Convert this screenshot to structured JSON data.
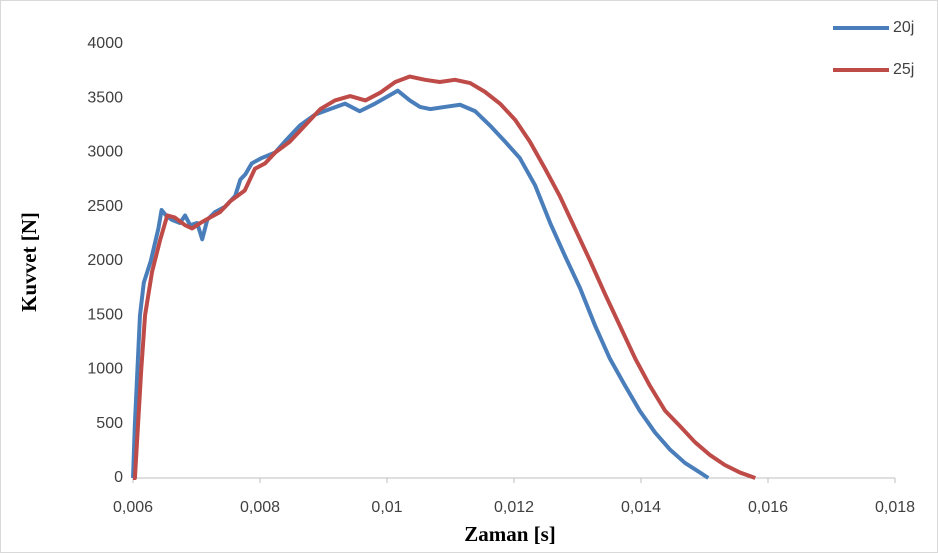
{
  "chart_data": {
    "type": "line",
    "x_label": "Zaman [s]",
    "y_label": "Kuvvet [N]",
    "xlim": [
      0.006,
      0.018
    ],
    "xticks": [
      {
        "value": 0.006,
        "label": "0,006"
      },
      {
        "value": 0.008,
        "label": "0,008"
      },
      {
        "value": 0.01,
        "label": "0,01"
      },
      {
        "value": 0.012,
        "label": "0,012"
      },
      {
        "value": 0.014,
        "label": "0,014"
      },
      {
        "value": 0.016,
        "label": "0,016"
      },
      {
        "value": 0.018,
        "label": "0,018"
      }
    ],
    "ylim": [
      0,
      4000
    ],
    "yticks": [
      0,
      500,
      1000,
      1500,
      2000,
      2500,
      3000,
      3500,
      4000
    ],
    "grid": false,
    "legend": "right",
    "series": [
      {
        "name": "20j",
        "color": "#4a7ebb",
        "x": [
          0.006,
          0.00603,
          0.00607,
          0.00611,
          0.00617,
          0.00628,
          0.0064,
          0.00645,
          0.00652,
          0.00661,
          0.00674,
          0.00682,
          0.0069,
          0.00701,
          0.00709,
          0.00717,
          0.00729,
          0.00745,
          0.00761,
          0.00769,
          0.00777,
          0.00787,
          0.00803,
          0.00824,
          0.00839,
          0.00863,
          0.00887,
          0.0091,
          0.00934,
          0.00957,
          0.00981,
          0.01005,
          0.01017,
          0.01036,
          0.01052,
          0.01068,
          0.01091,
          0.01115,
          0.01139,
          0.01162,
          0.01186,
          0.01209,
          0.01233,
          0.01257,
          0.0128,
          0.01304,
          0.01328,
          0.01351,
          0.01375,
          0.01398,
          0.01422,
          0.01446,
          0.01469,
          0.01493,
          0.01506
        ],
        "values": [
          0,
          500,
          1000,
          1500,
          1800,
          2000,
          2300,
          2470,
          2420,
          2380,
          2350,
          2420,
          2330,
          2350,
          2200,
          2380,
          2450,
          2500,
          2600,
          2750,
          2800,
          2900,
          2950,
          3000,
          3100,
          3250,
          3350,
          3400,
          3450,
          3380,
          3450,
          3530,
          3570,
          3480,
          3420,
          3400,
          3420,
          3440,
          3380,
          3250,
          3100,
          2950,
          2700,
          2350,
          2050,
          1750,
          1400,
          1100,
          850,
          620,
          420,
          260,
          140,
          50,
          0
        ]
      },
      {
        "name": "25j",
        "color": "#be4b48",
        "x": [
          0.006,
          0.00603,
          0.00608,
          0.00613,
          0.00619,
          0.0063,
          0.00643,
          0.00654,
          0.00666,
          0.00682,
          0.00693,
          0.00706,
          0.00721,
          0.00737,
          0.00753,
          0.00776,
          0.00792,
          0.00808,
          0.00824,
          0.00847,
          0.00871,
          0.00895,
          0.00918,
          0.00942,
          0.00966,
          0.00989,
          0.01013,
          0.01036,
          0.0106,
          0.01083,
          0.01107,
          0.01131,
          0.01154,
          0.01178,
          0.01202,
          0.01225,
          0.01249,
          0.01272,
          0.01296,
          0.0132,
          0.01343,
          0.01367,
          0.01391,
          0.01414,
          0.01438,
          0.01461,
          0.01485,
          0.01509,
          0.01532,
          0.01556,
          0.0158
        ],
        "values": [
          0,
          0,
          500,
          1000,
          1500,
          1900,
          2200,
          2420,
          2400,
          2330,
          2300,
          2350,
          2400,
          2450,
          2550,
          2650,
          2850,
          2900,
          3000,
          3100,
          3250,
          3400,
          3480,
          3520,
          3480,
          3550,
          3650,
          3700,
          3670,
          3650,
          3670,
          3640,
          3560,
          3450,
          3300,
          3100,
          2850,
          2600,
          2300,
          2000,
          1700,
          1400,
          1100,
          850,
          620,
          480,
          330,
          210,
          120,
          50,
          0
        ]
      }
    ]
  }
}
